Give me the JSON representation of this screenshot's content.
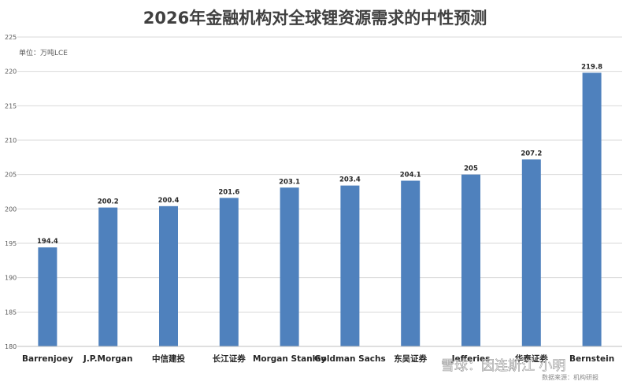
{
  "chart_data": {
    "type": "bar",
    "title": "2026年金融机构对全球锂资源需求的中性预测",
    "unit_label": "单位：万吨LCE",
    "categories": [
      "Barrenjoey",
      "J.P.Morgan",
      "中信建投",
      "长江证券",
      "Morgan Stanley",
      "Goldman Sachs",
      "东吴证券",
      "Jefferies",
      "华泰证券",
      "Bernstein"
    ],
    "values": [
      194.4,
      200.2,
      200.4,
      201.6,
      203.1,
      203.4,
      204.1,
      205,
      207.2,
      219.8
    ],
    "value_labels": [
      "194.4",
      "200.2",
      "200.4",
      "201.6",
      "203.1",
      "203.4",
      "204.1",
      "205",
      "207.2",
      "219.8"
    ],
    "yticks": [
      "180",
      "185",
      "190",
      "195",
      "200",
      "205",
      "210",
      "215",
      "220",
      "225"
    ],
    "ylim": [
      180,
      225
    ],
    "grid": true,
    "bar_color": "#4f81bd",
    "source_note": "数据来源：机构研报"
  },
  "watermark": {
    "text": "雪球：因连斯江 小明"
  }
}
